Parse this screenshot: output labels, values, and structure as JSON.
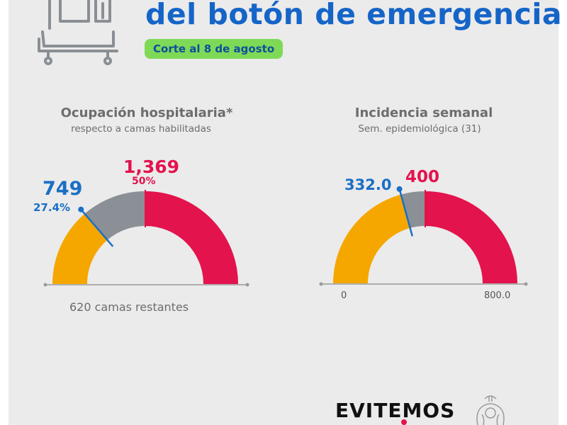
{
  "header": {
    "headline": "del botón de emergencia",
    "date_badge": "Corte al 8 de agosto"
  },
  "icons": {
    "bed": "hospital-bed-icon",
    "seal": "coat-of-arms-icon"
  },
  "colors": {
    "headline": "#1565c8",
    "badge_bg": "#7ed957",
    "orange": "#f5a700",
    "gray": "#8a9096",
    "red": "#e3134e",
    "blue": "#1a6fc4"
  },
  "chart_data": [
    {
      "type": "gauge",
      "title": "Ocupación hospitalaria*",
      "subtitle": "respecto a camas habilitadas",
      "value": 749,
      "value_percent_label": "27.4%",
      "threshold": 1369,
      "threshold_percent_label": "50%",
      "total": 2738,
      "value_label": "749",
      "threshold_label": "1,369",
      "note": "620 camas restantes",
      "segments": [
        {
          "color": "#f5a700",
          "from": 0,
          "to": 749
        },
        {
          "color": "#8a9096",
          "from": 749,
          "to": 1369
        },
        {
          "color": "#e3134e",
          "from": 1369,
          "to": 2738
        }
      ]
    },
    {
      "type": "gauge",
      "title": "Incidencia semanal",
      "subtitle": "Sem. epidemiológica (31)",
      "value": 332.0,
      "threshold": 400,
      "min": 0,
      "max": 800,
      "value_label": "332.0",
      "threshold_label": "400",
      "min_label": "0",
      "max_label": "800.0",
      "segments": [
        {
          "color": "#f5a700",
          "from": 0,
          "to": 332
        },
        {
          "color": "#8a9096",
          "from": 332,
          "to": 400
        },
        {
          "color": "#e3134e",
          "from": 400,
          "to": 800
        }
      ]
    }
  ],
  "footer": {
    "campaign": "EVITEMOS"
  }
}
